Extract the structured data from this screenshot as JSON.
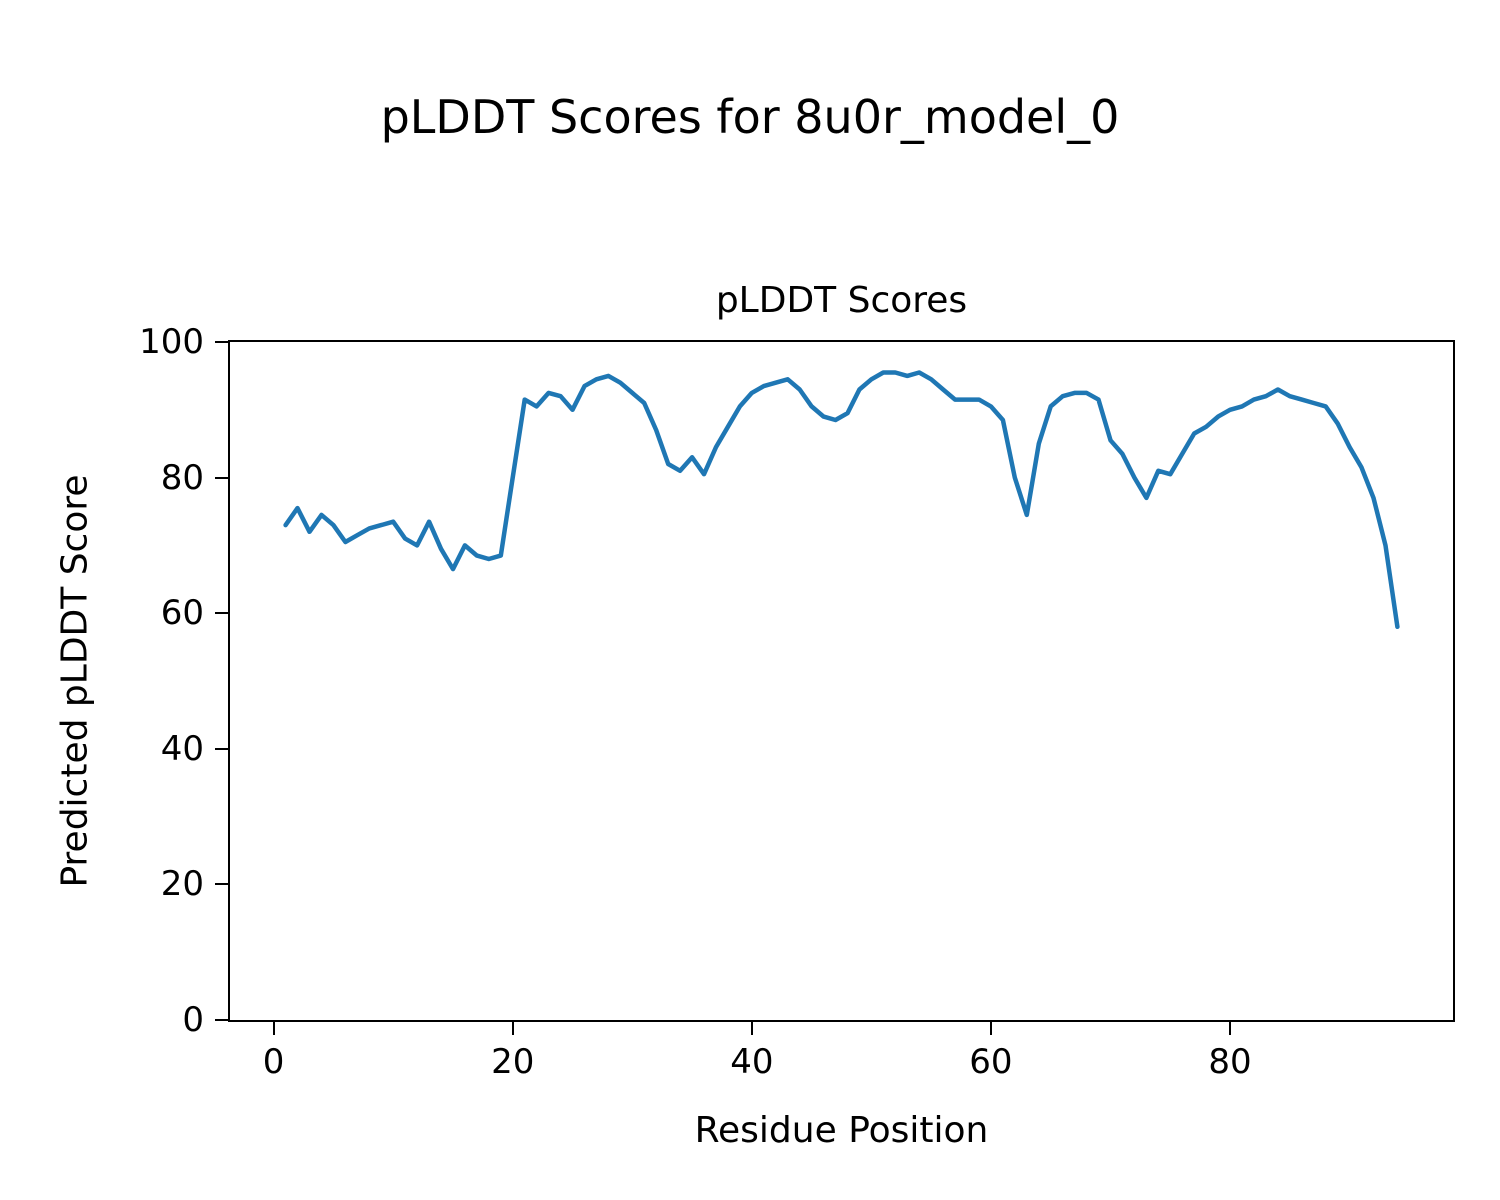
{
  "chart_data": {
    "type": "line",
    "suptitle": "pLDDT Scores for 8u0r_model_0",
    "title": "pLDDT Scores",
    "xlabel": "Residue Position",
    "ylabel": "Predicted pLDDT Score",
    "xlim": [
      -3.65,
      98.65
    ],
    "ylim": [
      0,
      100
    ],
    "xticks": [
      0,
      20,
      40,
      60,
      80
    ],
    "yticks": [
      0,
      20,
      40,
      60,
      80,
      100
    ],
    "grid": false,
    "legend": null,
    "line_color": "#1f77b4",
    "line_width": 4.5,
    "series": [
      {
        "name": "pLDDT",
        "x": [
          1,
          2,
          3,
          4,
          5,
          6,
          7,
          8,
          9,
          10,
          11,
          12,
          13,
          14,
          15,
          16,
          17,
          18,
          19,
          20,
          21,
          22,
          23,
          24,
          25,
          26,
          27,
          28,
          29,
          30,
          31,
          32,
          33,
          34,
          35,
          36,
          37,
          38,
          39,
          40,
          41,
          42,
          43,
          44,
          45,
          46,
          47,
          48,
          49,
          50,
          51,
          52,
          53,
          54,
          55,
          56,
          57,
          58,
          59,
          60,
          61,
          62,
          63,
          64,
          65,
          66,
          67,
          68,
          69,
          70,
          71,
          72,
          73,
          74,
          75,
          76,
          77,
          78,
          79,
          80,
          81,
          82,
          83,
          84,
          85,
          86,
          87,
          88,
          89,
          90,
          91,
          92,
          93,
          94
        ],
        "y": [
          73,
          75.5,
          72,
          74.5,
          73,
          70.5,
          71.5,
          72.5,
          73,
          73.5,
          71,
          70,
          73.5,
          69.5,
          66.5,
          70,
          68.5,
          68,
          68.5,
          80,
          91.5,
          90.5,
          92.5,
          92,
          90,
          93.5,
          94.5,
          95,
          94,
          92.5,
          91,
          87,
          82,
          81,
          83,
          80.5,
          84.5,
          87.5,
          90.5,
          92.5,
          93.5,
          94,
          94.5,
          93,
          90.5,
          89,
          88.5,
          89.5,
          93,
          94.5,
          95.5,
          95.5,
          95,
          95.5,
          94.5,
          93,
          91.5,
          91.5,
          91.5,
          90.5,
          88.5,
          80,
          74.5,
          85,
          90.5,
          92,
          92.5,
          92.5,
          91.5,
          85.5,
          83.5,
          80,
          77,
          81,
          80.5,
          83.5,
          86.5,
          87.5,
          89,
          90,
          90.5,
          91.5,
          92,
          93,
          92,
          91.5,
          91,
          90.5,
          88,
          84.5,
          81.5,
          77,
          70,
          58
        ]
      }
    ]
  }
}
